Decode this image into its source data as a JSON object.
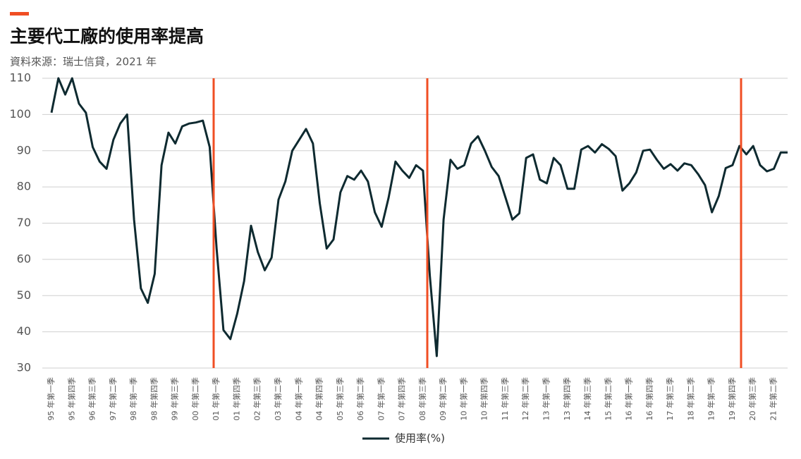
{
  "chart_data": {
    "type": "line",
    "title": "主要代工廠的使用率提高",
    "subtitle": "資料來源：瑞士信貸，2021 年",
    "categories": [
      "95 年第一季",
      null,
      null,
      "95 年第四季",
      null,
      null,
      "96 年第三季",
      null,
      null,
      "97 年第二季",
      null,
      null,
      "98 年第一季",
      null,
      null,
      "98 年第四季",
      null,
      null,
      "99 年第三季",
      null,
      null,
      "00 年第二季",
      null,
      null,
      "01 年第一季",
      null,
      null,
      "01 年第四季",
      null,
      null,
      "02 年第三季",
      null,
      null,
      "03 年第二季",
      null,
      null,
      "04 年第一季",
      null,
      null,
      "04 年第四季",
      null,
      null,
      "05 年第三季",
      null,
      null,
      "06 年第二季",
      null,
      null,
      "07 年第一季",
      null,
      null,
      "07 年第四季",
      null,
      null,
      "08 年第三季",
      null,
      null,
      "09 年第二季",
      null,
      null,
      "10 年第一季",
      null,
      null,
      "10 年第四季",
      null,
      null,
      "11 年第三季",
      null,
      null,
      "12 年第二季",
      null,
      null,
      "13 年第一季",
      null,
      null,
      "13 年第四季",
      null,
      null,
      "14 年第三季",
      null,
      null,
      "15 年第二季",
      null,
      null,
      "16 年第一季",
      null,
      null,
      "16 年第四季",
      null,
      null,
      "17 年第三季",
      null,
      null,
      "18 年第二季",
      null,
      null,
      "19 年第一季",
      null,
      null,
      "19 年第四季",
      null,
      null,
      "20 年第三季",
      null,
      null,
      "21 年第二季",
      null,
      null
    ],
    "series": [
      {
        "name": "使用率(%)",
        "color": "#0e2a30",
        "values": [
          100.5,
          110,
          105.5,
          110,
          103,
          100.5,
          91,
          87,
          85,
          93,
          97.5,
          100,
          71,
          52,
          48,
          56,
          86,
          95,
          92,
          96.7,
          97.5,
          97.8,
          98.3,
          91,
          63,
          40.5,
          38,
          45,
          54,
          69.3,
          62,
          57,
          60.5,
          76.5,
          81.5,
          90,
          93,
          96,
          92,
          75.5,
          63,
          65.5,
          78.5,
          83,
          82,
          84.5,
          81.5,
          73,
          69,
          77,
          87,
          84.5,
          82.5,
          86,
          84.5,
          55.5,
          33.3,
          71,
          87.5,
          85,
          86,
          92,
          94,
          90,
          85.5,
          83,
          77,
          71,
          72.7,
          88,
          89,
          82,
          81,
          88,
          86,
          79.5,
          79.5,
          90.3,
          91.3,
          89.5,
          91.8,
          90.5,
          88.5,
          79,
          81,
          84,
          90,
          90.3,
          87.5,
          85,
          86.3,
          84.5,
          86.5,
          86,
          83.5,
          80.5,
          73,
          77.5,
          85.2,
          86,
          91.3,
          89,
          91.3,
          86,
          84.3,
          85,
          89.5,
          89.5
        ]
      }
    ],
    "ylim": [
      30,
      110
    ],
    "yticks": [
      30,
      40,
      50,
      60,
      70,
      80,
      90,
      100,
      110
    ],
    "grid": true
  }
}
